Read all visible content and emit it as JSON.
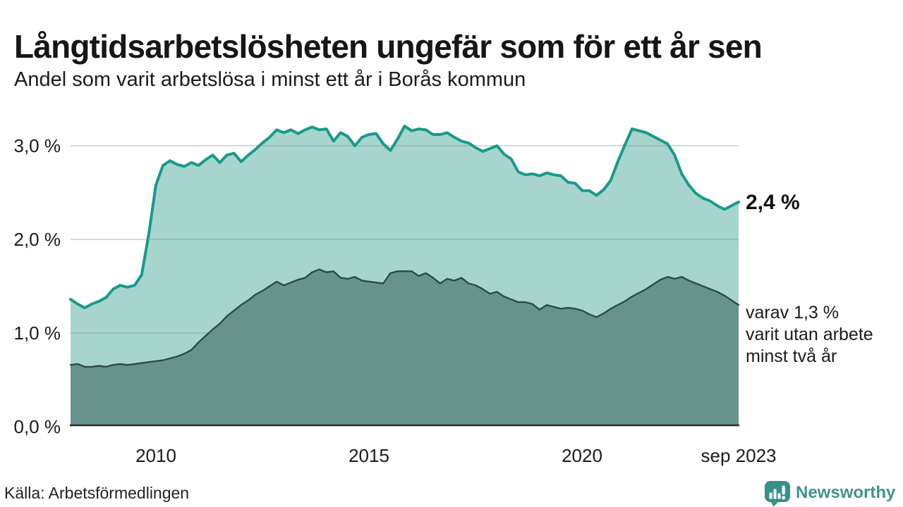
{
  "header": {
    "title": "Långtidsarbetslösheten ungefär som för ett år sen",
    "subtitle": "Andel som varit arbetslösa i minst ett år i Borås kommun"
  },
  "colors": {
    "line_total": "#189a8b",
    "fill_total": "#a7d5cd",
    "line_2yr": "#304a44",
    "fill_2yr": "#68938d",
    "grid": "rgba(120,134,140,0.30)",
    "axis": "#2b2b2b",
    "text": "#1b1b1b",
    "brand": "#3f948d"
  },
  "chart_data": {
    "type": "area",
    "title": "Långtidsarbetslösheten ungefär som för ett år sen",
    "subtitle": "Andel som varit arbetslösa i minst ett år i Borås kommun",
    "x_start_year": 2008.0,
    "x_end_year": 2023.67,
    "x_step_years": 0.1667,
    "ylim": [
      0,
      3.3
    ],
    "grid": true,
    "legend_position": "right-annotations",
    "yticks": [
      {
        "value": 0,
        "label": "0,0 %"
      },
      {
        "value": 1,
        "label": "1,0 %"
      },
      {
        "value": 2,
        "label": "2,0 %"
      },
      {
        "value": 3,
        "label": "3,0 %"
      }
    ],
    "xticks": [
      {
        "year": 2010,
        "label": "2010"
      },
      {
        "year": 2015,
        "label": "2015"
      },
      {
        "year": 2020,
        "label": "2020"
      },
      {
        "year": 2023.67,
        "label": "sep 2023"
      }
    ],
    "series": [
      {
        "name": "arbetslösa minst ett år",
        "end_label": "2,4 %",
        "end_value": 2.4,
        "values": [
          1.36,
          1.31,
          1.27,
          1.31,
          1.34,
          1.38,
          1.47,
          1.51,
          1.49,
          1.51,
          1.62,
          2.05,
          2.58,
          2.79,
          2.84,
          2.8,
          2.78,
          2.82,
          2.79,
          2.85,
          2.9,
          2.82,
          2.9,
          2.92,
          2.83,
          2.9,
          2.96,
          3.03,
          3.09,
          3.17,
          3.14,
          3.17,
          3.13,
          3.17,
          3.2,
          3.17,
          3.18,
          3.05,
          3.14,
          3.1,
          3.0,
          3.09,
          3.12,
          3.13,
          3.02,
          2.95,
          3.07,
          3.21,
          3.16,
          3.18,
          3.17,
          3.12,
          3.12,
          3.14,
          3.09,
          3.05,
          3.03,
          2.98,
          2.94,
          2.97,
          3.0,
          2.91,
          2.86,
          2.72,
          2.69,
          2.7,
          2.68,
          2.71,
          2.69,
          2.68,
          2.61,
          2.6,
          2.52,
          2.52,
          2.47,
          2.53,
          2.63,
          2.83,
          3.01,
          3.18,
          3.16,
          3.14,
          3.1,
          3.06,
          3.02,
          2.9,
          2.7,
          2.58,
          2.49,
          2.44,
          2.41,
          2.36,
          2.32,
          2.36,
          2.4
        ]
      },
      {
        "name": "varav utan arbete minst två år",
        "end_label": "varav 1,3 %\nvarit utan arbete\nminst två år",
        "end_value": 1.3,
        "values": [
          0.66,
          0.67,
          0.64,
          0.64,
          0.65,
          0.64,
          0.66,
          0.67,
          0.66,
          0.67,
          0.68,
          0.69,
          0.7,
          0.71,
          0.73,
          0.75,
          0.78,
          0.82,
          0.9,
          0.97,
          1.04,
          1.1,
          1.18,
          1.24,
          1.3,
          1.35,
          1.41,
          1.45,
          1.5,
          1.55,
          1.51,
          1.54,
          1.57,
          1.59,
          1.65,
          1.68,
          1.65,
          1.66,
          1.59,
          1.58,
          1.6,
          1.56,
          1.55,
          1.54,
          1.53,
          1.64,
          1.66,
          1.66,
          1.66,
          1.61,
          1.64,
          1.59,
          1.53,
          1.58,
          1.56,
          1.59,
          1.53,
          1.51,
          1.47,
          1.42,
          1.44,
          1.39,
          1.36,
          1.33,
          1.33,
          1.31,
          1.25,
          1.3,
          1.28,
          1.26,
          1.27,
          1.26,
          1.24,
          1.2,
          1.17,
          1.21,
          1.26,
          1.3,
          1.34,
          1.39,
          1.43,
          1.47,
          1.52,
          1.57,
          1.6,
          1.58,
          1.6,
          1.56,
          1.53,
          1.5,
          1.47,
          1.44,
          1.4,
          1.35,
          1.3
        ]
      }
    ]
  },
  "footer": {
    "source": "Källa: Arbetsförmedlingen",
    "brand": "Newsworthy"
  }
}
